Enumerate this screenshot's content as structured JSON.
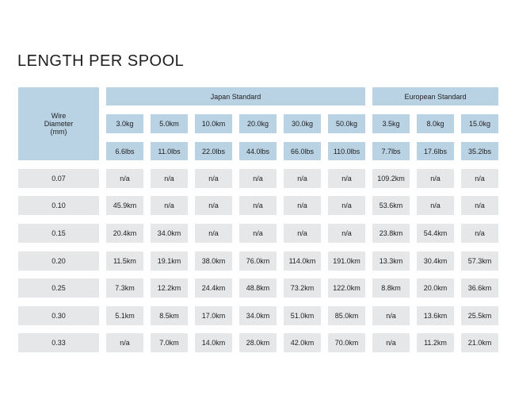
{
  "title": "LENGTH PER SPOOL",
  "colors": {
    "header": "#b9d2e4",
    "cell": "#e6e7e8"
  },
  "table": {
    "row_header": "Wire\nDiameter\n(mm)",
    "groups": [
      {
        "label": "Japan Standard",
        "span": 6
      },
      {
        "label": "European Standard",
        "span": 3
      }
    ],
    "weights": [
      "3.0kg",
      "5.0km",
      "10.0km",
      "20.0kg",
      "30.0kg",
      "50.0kg",
      "3.5kg",
      "8.0kg",
      "15.0kg"
    ],
    "pounds": [
      "6.6lbs",
      "11.0lbs",
      "22.0lbs",
      "44.0lbs",
      "66.0lbs",
      "110.0lbs",
      "7.7lbs",
      "17.6lbs",
      "35.2lbs"
    ],
    "rows": [
      {
        "diameter": "0.07",
        "values": [
          "n/a",
          "n/a",
          "n/a",
          "n/a",
          "n/a",
          "n/a",
          "109.2km",
          "n/a",
          "n/a"
        ]
      },
      {
        "diameter": "0.10",
        "values": [
          "45.9km",
          "n/a",
          "n/a",
          "n/a",
          "n/a",
          "n/a",
          "53.6km",
          "n/a",
          "n/a"
        ]
      },
      {
        "diameter": "0.15",
        "values": [
          "20.4km",
          "34.0km",
          "n/a",
          "n/a",
          "n/a",
          "n/a",
          "23.8km",
          "54.4km",
          "n/a"
        ]
      },
      {
        "diameter": "0.20",
        "values": [
          "11.5km",
          "19.1km",
          "38.0km",
          "76.0km",
          "114.0km",
          "191.0km",
          "13.3km",
          "30.4km",
          "57.3km"
        ]
      },
      {
        "diameter": "0.25",
        "values": [
          "7.3km",
          "12.2km",
          "24.4km",
          "48.8km",
          "73.2km",
          "122.0km",
          "8.8km",
          "20.0km",
          "36.6km"
        ]
      },
      {
        "diameter": "0.30",
        "values": [
          "5.1km",
          "8.5km",
          "17.0km",
          "34.0km",
          "51.0km",
          "85.0km",
          "n/a",
          "13.6km",
          "25.5km"
        ]
      },
      {
        "diameter": "0.33",
        "values": [
          "n/a",
          "7.0km",
          "14.0km",
          "28.0km",
          "42.0km",
          "70.0km",
          "n/a",
          "11.2km",
          "21.0km"
        ]
      }
    ]
  }
}
